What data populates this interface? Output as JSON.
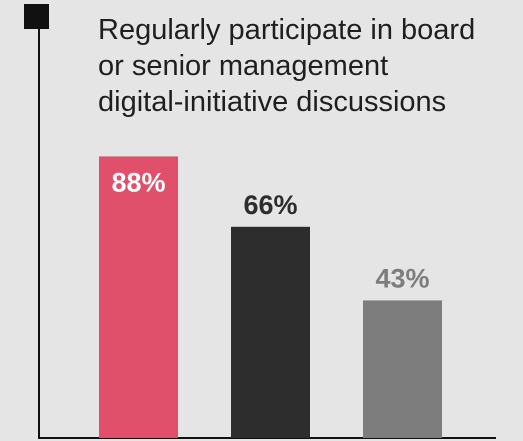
{
  "chart_data": {
    "type": "bar",
    "title_lines": [
      "Regularly participate in board",
      "or senior management",
      "digital-initiative discussions"
    ],
    "values": [
      88,
      66,
      43
    ],
    "labels": [
      "88%",
      "66%",
      "43%"
    ],
    "ylim": [
      0,
      100
    ],
    "grid": false,
    "legend": "none",
    "colors": {
      "bars": [
        "#e0506a",
        "#2d2d2d",
        "#7d7d7d"
      ],
      "value_labels": [
        "#ffffff",
        "#2d2d2d",
        "#7d7d7d"
      ],
      "axis": "#111111",
      "marker": "#111111",
      "background": "#e5e5e5"
    }
  }
}
